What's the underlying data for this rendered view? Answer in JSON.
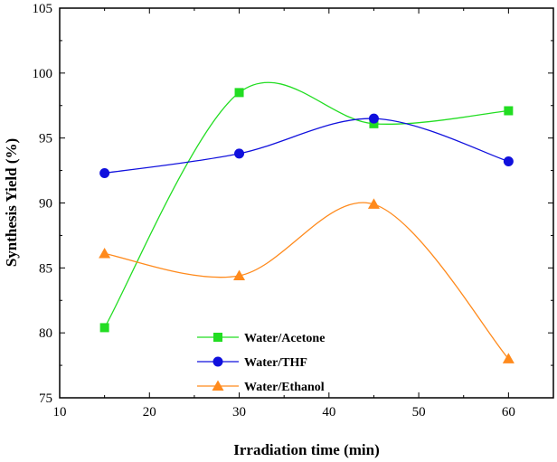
{
  "chart_data": {
    "type": "line",
    "xlabel": "Irradiation time (min)",
    "ylabel": "Synthesis Yield (%)",
    "xlim": [
      10,
      65
    ],
    "ylim": [
      75,
      105
    ],
    "xticks": [
      10,
      20,
      30,
      40,
      50,
      60
    ],
    "yticks": [
      75,
      80,
      85,
      90,
      95,
      100,
      105
    ],
    "x": [
      15,
      30,
      45,
      60
    ],
    "series": [
      {
        "name": "Water/Acetone",
        "values": [
          80.4,
          98.5,
          96.1,
          97.1
        ],
        "color": "#22dd22",
        "marker": "square"
      },
      {
        "name": "Water/THF",
        "values": [
          92.3,
          93.8,
          96.5,
          93.2
        ],
        "color": "#1010dd",
        "marker": "circle"
      },
      {
        "name": "Water/Ethanol",
        "values": [
          86.1,
          84.4,
          89.9,
          78.0
        ],
        "color": "#ff8a1c",
        "marker": "triangle"
      }
    ],
    "grid": false,
    "legend_position": "bottom-center"
  }
}
